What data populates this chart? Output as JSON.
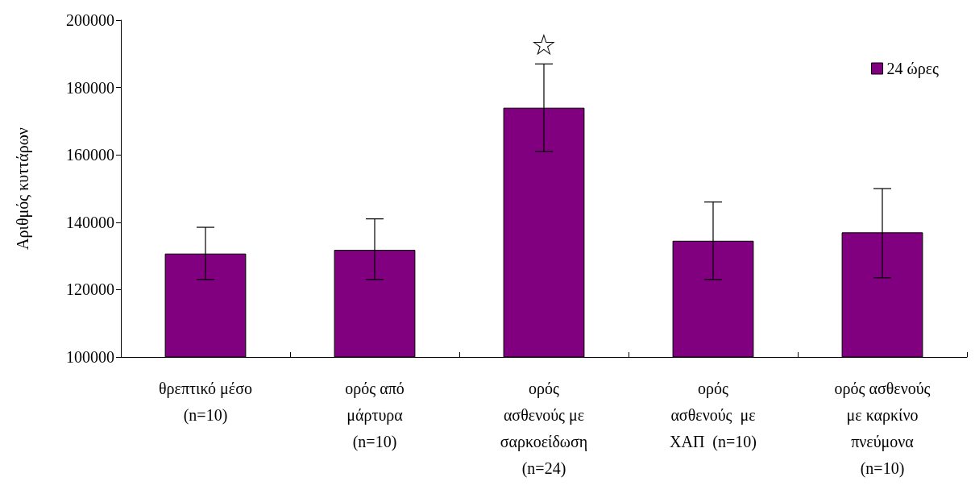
{
  "chart_data": {
    "type": "bar",
    "ylabel": "Αριθμός κυττάρων",
    "categories": [
      "θρεπτικό μέσο\n(n=10)",
      "ορός από\nμάρτυρα\n(n=10)",
      "ορός\nασθενούς με\nσαρκοείδωση\n(n=24)",
      "ορός\nασθενούς  με\nΧΑΠ  (n=10)",
      "ορός ασθενούς\nμε καρκίνο\nπνεύμονα\n(n=10)"
    ],
    "series": [
      {
        "name": "24 ώρες",
        "color": "#800080",
        "values": [
          130700,
          131800,
          174000,
          134500,
          137000
        ],
        "errors": [
          [
            123000,
            138500
          ],
          [
            123000,
            141000
          ],
          [
            161000,
            187000
          ],
          [
            123000,
            146000
          ],
          [
            123500,
            150000
          ]
        ]
      }
    ],
    "ylim": [
      100000,
      200000
    ],
    "yticks": [
      100000,
      120000,
      140000,
      160000,
      180000,
      200000
    ],
    "grid": false,
    "legend": "top right",
    "annotations": [
      {
        "text": "☆",
        "x": "ορός\nασθενούς με\nσαρκοείδωση\n(n=24)",
        "y": 187000
      }
    ]
  }
}
